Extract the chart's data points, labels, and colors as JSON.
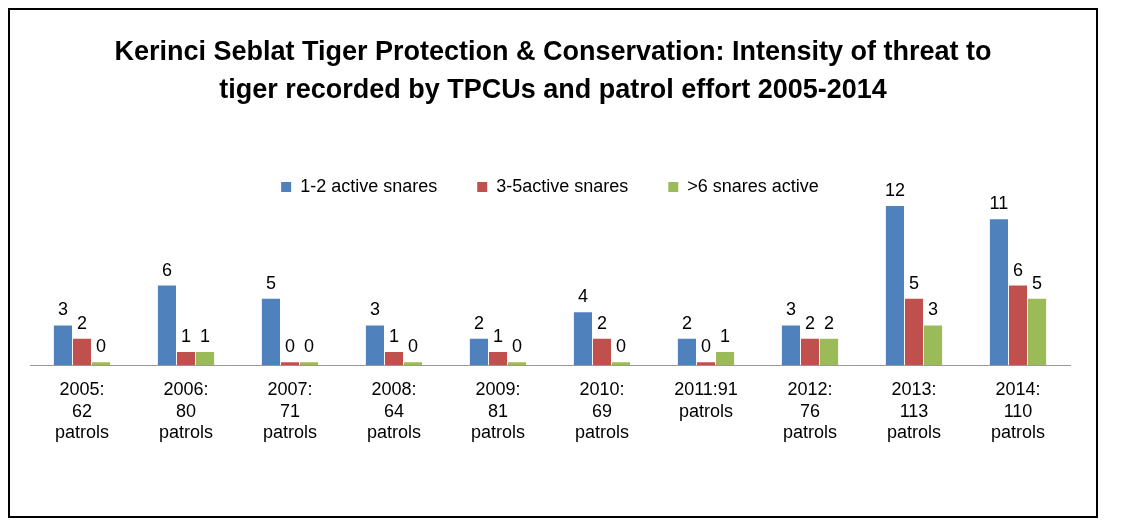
{
  "chart_data": {
    "type": "bar",
    "title": "Kerinci Seblat Tiger Protection & Conservation: Intensity of threat to tiger recorded by TPCUs and patrol effort 2005-2014",
    "categories": [
      "2005: 62 patrols",
      "2006: 80 patrols",
      "2007: 71 patrols",
      "2008: 64 patrols",
      "2009: 81 patrols",
      "2010: 69 patrols",
      "2011:91 patrols",
      "2012: 76 patrols",
      "2013: 113 patrols",
      "2014: 110 patrols"
    ],
    "series": [
      {
        "name": "1-2 active snares",
        "color": "#4f81bd",
        "values": [
          3,
          6,
          5,
          3,
          2,
          4,
          2,
          3,
          12,
          11
        ]
      },
      {
        "name": "3-5active snares",
        "color": "#c0504d",
        "values": [
          2,
          1,
          0,
          1,
          1,
          2,
          0,
          2,
          5,
          6
        ]
      },
      {
        "name": ">6 snares active",
        "color": "#9bbb59",
        "values": [
          0,
          1,
          0,
          0,
          0,
          0,
          1,
          2,
          3,
          5
        ]
      }
    ],
    "data_labels": true,
    "legend": "top",
    "grid": false
  }
}
